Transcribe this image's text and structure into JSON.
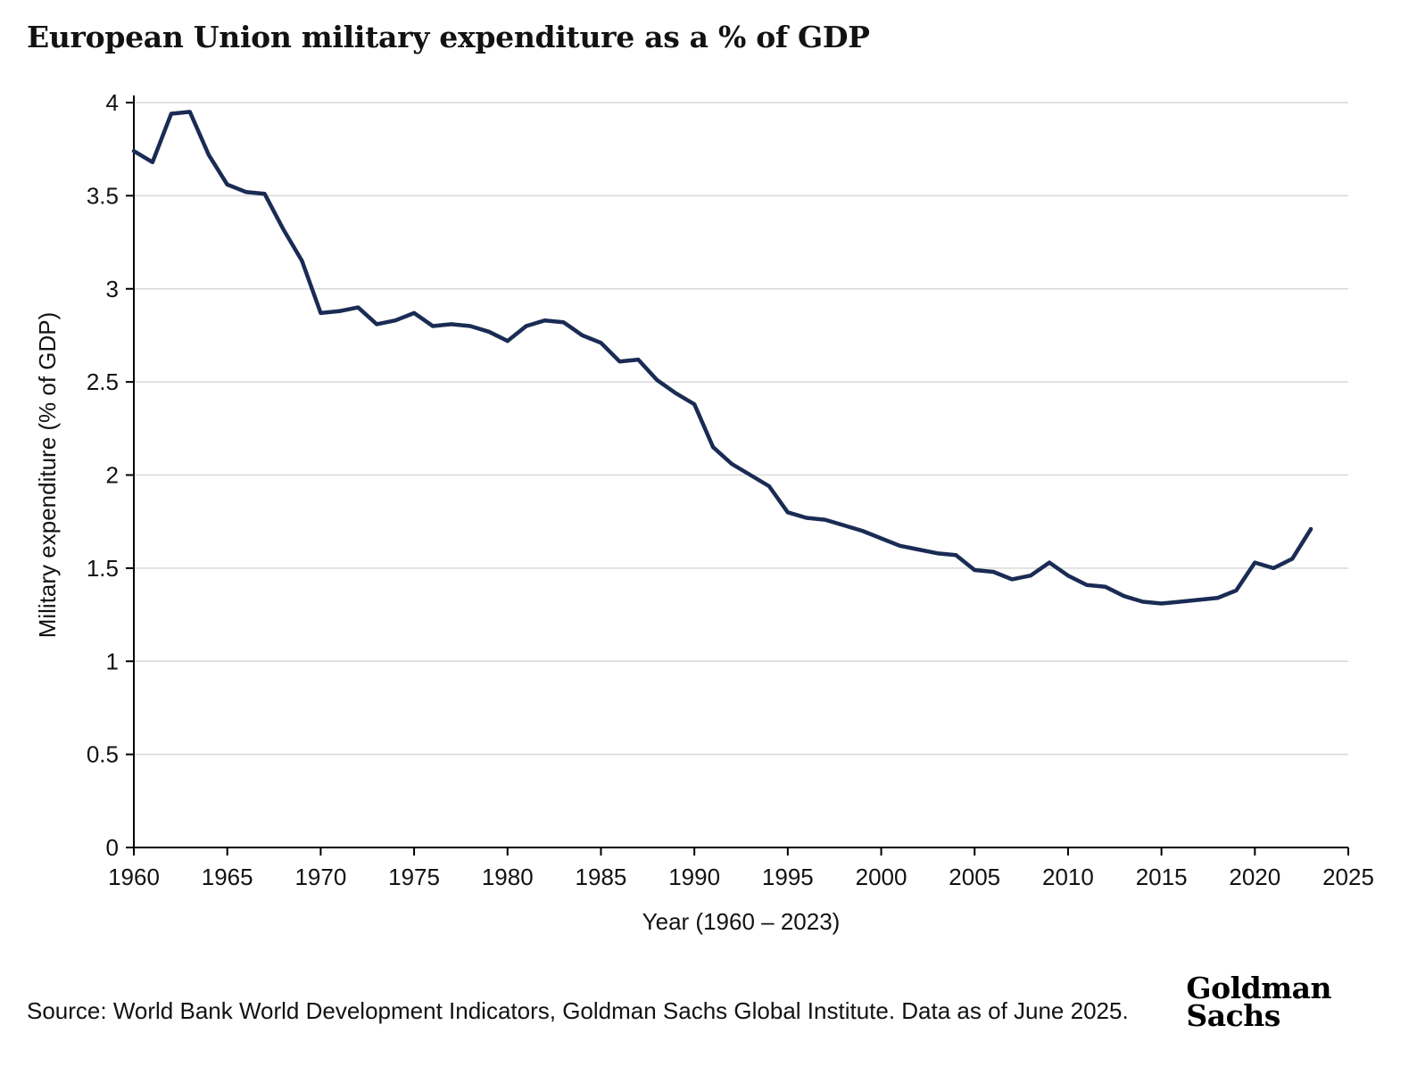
{
  "page": {
    "source": "Source: World Bank World Development Indicators, Goldman Sachs Global Institute. Data as of June 2025.",
    "logo_line1": "Goldman",
    "logo_line2": "Sachs"
  },
  "chart_data": {
    "type": "line",
    "title": "European Union military expenditure as a % of GDP",
    "xlabel": "Year (1960 – 2023)",
    "ylabel": "Military expenditure (% of GDP)",
    "xlim": [
      1960,
      2025
    ],
    "ylim": [
      0,
      4
    ],
    "xticks": [
      1960,
      1965,
      1970,
      1975,
      1980,
      1985,
      1990,
      1995,
      2000,
      2005,
      2010,
      2015,
      2020,
      2025
    ],
    "yticks": [
      0,
      0.5,
      1,
      1.5,
      2,
      2.5,
      3,
      3.5,
      4
    ],
    "grid": true,
    "legend": "none",
    "line_color": "#1a2b54",
    "grid_color": "#d9d9d9",
    "axis_color": "#000000",
    "x": [
      1960,
      1961,
      1962,
      1963,
      1964,
      1965,
      1966,
      1967,
      1968,
      1969,
      1970,
      1971,
      1972,
      1973,
      1974,
      1975,
      1976,
      1977,
      1978,
      1979,
      1980,
      1981,
      1982,
      1983,
      1984,
      1985,
      1986,
      1987,
      1988,
      1989,
      1990,
      1991,
      1992,
      1993,
      1994,
      1995,
      1996,
      1997,
      1998,
      1999,
      2000,
      2001,
      2002,
      2003,
      2004,
      2005,
      2006,
      2007,
      2008,
      2009,
      2010,
      2011,
      2012,
      2013,
      2014,
      2015,
      2016,
      2017,
      2018,
      2019,
      2020,
      2021,
      2022,
      2023
    ],
    "values": [
      3.74,
      3.68,
      3.94,
      3.95,
      3.72,
      3.56,
      3.52,
      3.51,
      3.32,
      3.15,
      2.87,
      2.88,
      2.9,
      2.81,
      2.83,
      2.87,
      2.8,
      2.81,
      2.8,
      2.77,
      2.72,
      2.8,
      2.83,
      2.82,
      2.75,
      2.71,
      2.61,
      2.62,
      2.51,
      2.44,
      2.38,
      2.15,
      2.06,
      2.0,
      1.94,
      1.8,
      1.77,
      1.76,
      1.73,
      1.7,
      1.66,
      1.62,
      1.6,
      1.58,
      1.57,
      1.49,
      1.48,
      1.44,
      1.46,
      1.53,
      1.46,
      1.41,
      1.4,
      1.35,
      1.32,
      1.31,
      1.32,
      1.33,
      1.34,
      1.38,
      1.53,
      1.5,
      1.55,
      1.71
    ]
  }
}
